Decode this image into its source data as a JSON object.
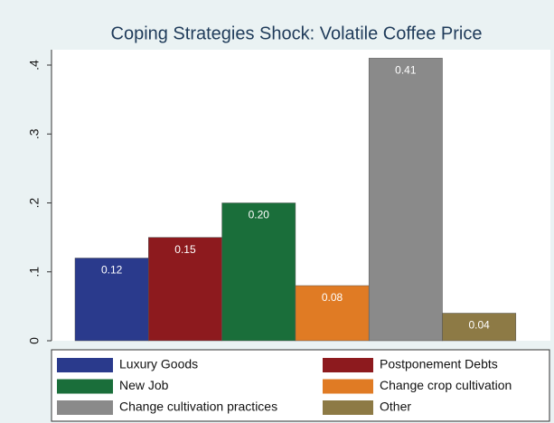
{
  "chart_data": {
    "type": "bar",
    "title": "Coping Strategies Shock: Volatile Coffee Price",
    "series": [
      {
        "name": "Luxury Goods",
        "color": "#2a3a8c",
        "values": [
          0.12
        ],
        "value_labels": [
          "0.12"
        ]
      },
      {
        "name": "Postponement Debts",
        "color": "#8d1a1e",
        "values": [
          0.15
        ],
        "value_labels": [
          "0.15"
        ]
      },
      {
        "name": "New Job",
        "color": "#1a6e3a",
        "values": [
          0.2
        ],
        "value_labels": [
          "0.20"
        ]
      },
      {
        "name": "Change crop cultivation",
        "color": "#e07b24",
        "values": [
          0.08
        ],
        "value_labels": [
          "0.08"
        ]
      },
      {
        "name": "Change cultivation practices",
        "color": "#8a8a8a",
        "values": [
          0.41
        ],
        "value_labels": [
          "0.41"
        ]
      },
      {
        "name": "Other",
        "color": "#8d7a45",
        "values": [
          0.04
        ],
        "value_labels": [
          "0.04"
        ]
      }
    ],
    "ylim": [
      0,
      0.4
    ],
    "yticks": [
      0,
      {
        "value": 0.1,
        "label": ".1"
      },
      {
        "value": 0.2,
        "label": ".2"
      },
      {
        "value": 0.3,
        "label": ".3"
      },
      {
        "value": 0.4,
        "label": ".4"
      }
    ]
  }
}
